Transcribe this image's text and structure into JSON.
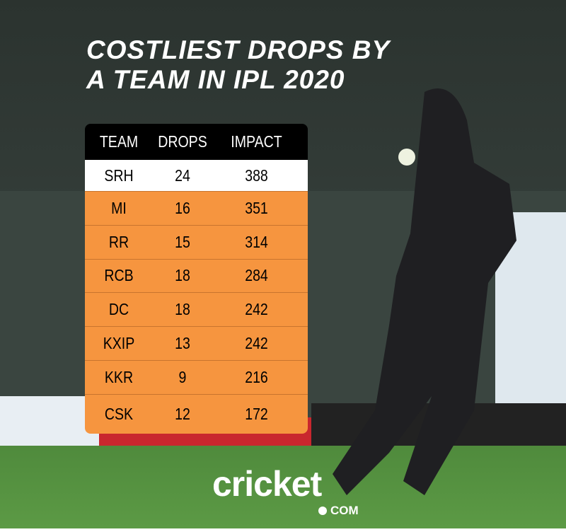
{
  "title": {
    "lines": [
      "COSTLIEST DROPS BY",
      "A TEAM IN IPL 2020"
    ]
  },
  "table": {
    "headers": [
      "TEAM",
      "DROPS",
      "IMPACT"
    ],
    "rows": [
      [
        "SRH",
        24,
        388
      ],
      [
        "MI",
        16,
        351
      ],
      [
        "RR",
        15,
        314
      ],
      [
        "RCB",
        18,
        284
      ],
      [
        "DC",
        18,
        242
      ],
      [
        "KXIP",
        13,
        242
      ],
      [
        "KKR",
        9,
        216
      ],
      [
        "CSK",
        12,
        172
      ]
    ]
  },
  "logo": {
    "brand": "cricket",
    "suffix": "COM"
  }
}
